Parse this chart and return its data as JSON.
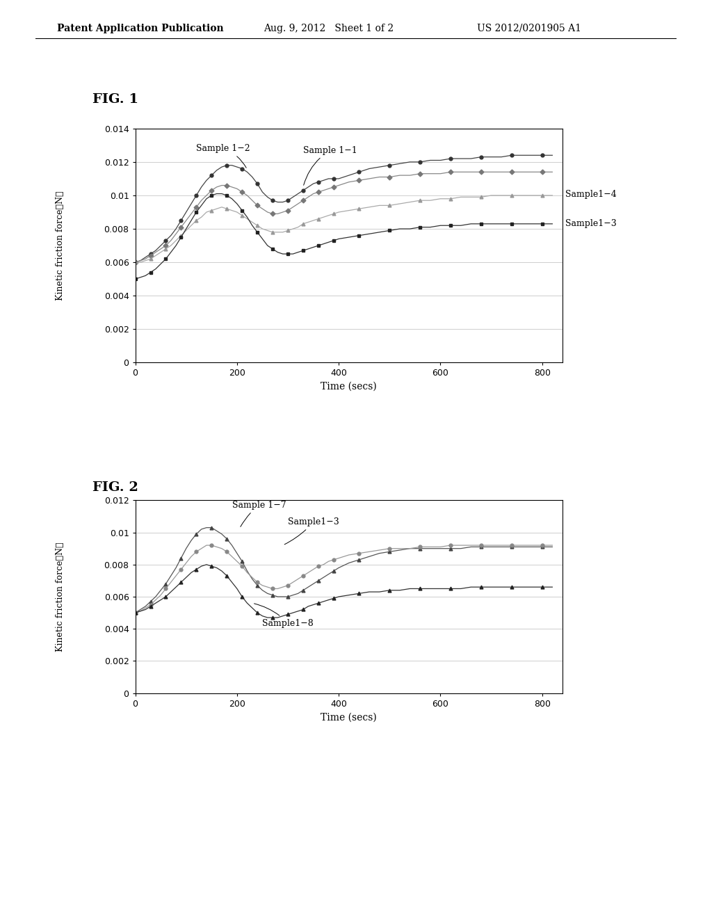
{
  "header_left": "Patent Application Publication",
  "header_mid": "Aug. 9, 2012   Sheet 1 of 2",
  "header_right": "US 2012/0201905 A1",
  "fig1_title": "FIG. 1",
  "fig2_title": "FIG. 2",
  "xlabel": "Time (secs)",
  "fig1": {
    "ylabel": "Kinetic friction force（N）",
    "ylim": [
      0,
      0.014
    ],
    "xlim": [
      0,
      840
    ],
    "yticks": [
      0,
      0.002,
      0.004,
      0.006,
      0.008,
      0.01,
      0.012,
      0.014
    ],
    "xticks": [
      0,
      200,
      400,
      600,
      800
    ],
    "series": [
      {
        "label": "Sample 1−2",
        "color": "#444444",
        "marker": "o",
        "marker_color": "#333333",
        "x": [
          0,
          10,
          20,
          30,
          40,
          50,
          60,
          70,
          80,
          90,
          100,
          110,
          120,
          130,
          140,
          150,
          160,
          170,
          180,
          190,
          200,
          210,
          220,
          230,
          240,
          250,
          260,
          270,
          280,
          290,
          300,
          310,
          320,
          330,
          340,
          350,
          360,
          370,
          380,
          390,
          400,
          420,
          440,
          460,
          480,
          500,
          520,
          540,
          560,
          580,
          600,
          620,
          640,
          660,
          680,
          700,
          720,
          740,
          760,
          780,
          800,
          820
        ],
        "y": [
          0.006,
          0.0061,
          0.0063,
          0.0065,
          0.0067,
          0.007,
          0.0073,
          0.0076,
          0.008,
          0.0085,
          0.009,
          0.0095,
          0.01,
          0.0105,
          0.0109,
          0.0112,
          0.0115,
          0.0117,
          0.0118,
          0.0118,
          0.0117,
          0.0116,
          0.0114,
          0.0111,
          0.0107,
          0.0102,
          0.0099,
          0.0097,
          0.0096,
          0.0096,
          0.0097,
          0.0099,
          0.0101,
          0.0103,
          0.0105,
          0.0107,
          0.0108,
          0.0109,
          0.011,
          0.011,
          0.011,
          0.0112,
          0.0114,
          0.0116,
          0.0117,
          0.0118,
          0.0119,
          0.012,
          0.012,
          0.0121,
          0.0121,
          0.0122,
          0.0122,
          0.0122,
          0.0123,
          0.0123,
          0.0123,
          0.0124,
          0.0124,
          0.0124,
          0.0124,
          0.0124
        ]
      },
      {
        "label": "Sample 1−1",
        "color": "#888888",
        "marker": "D",
        "marker_color": "#777777",
        "x": [
          0,
          10,
          20,
          30,
          40,
          50,
          60,
          70,
          80,
          90,
          100,
          110,
          120,
          130,
          140,
          150,
          160,
          170,
          180,
          190,
          200,
          210,
          220,
          230,
          240,
          250,
          260,
          270,
          280,
          290,
          300,
          310,
          320,
          330,
          340,
          350,
          360,
          370,
          380,
          390,
          400,
          420,
          440,
          460,
          480,
          500,
          520,
          540,
          560,
          580,
          600,
          620,
          640,
          660,
          680,
          700,
          720,
          740,
          760,
          780,
          800,
          820
        ],
        "y": [
          0.006,
          0.0061,
          0.0062,
          0.0064,
          0.0066,
          0.0068,
          0.007,
          0.0073,
          0.0077,
          0.0081,
          0.0085,
          0.0089,
          0.0093,
          0.0097,
          0.01,
          0.0103,
          0.0105,
          0.0106,
          0.0106,
          0.0105,
          0.0104,
          0.0102,
          0.01,
          0.0097,
          0.0094,
          0.0092,
          0.009,
          0.0089,
          0.0089,
          0.009,
          0.0091,
          0.0093,
          0.0095,
          0.0097,
          0.0099,
          0.0101,
          0.0102,
          0.0103,
          0.0104,
          0.0105,
          0.0106,
          0.0108,
          0.0109,
          0.011,
          0.0111,
          0.0111,
          0.0112,
          0.0112,
          0.0113,
          0.0113,
          0.0113,
          0.0114,
          0.0114,
          0.0114,
          0.0114,
          0.0114,
          0.0114,
          0.0114,
          0.0114,
          0.0114,
          0.0114,
          0.0114
        ]
      },
      {
        "label": "Sample1−4",
        "color": "#aaaaaa",
        "marker": "^",
        "marker_color": "#999999",
        "x": [
          0,
          10,
          20,
          30,
          40,
          50,
          60,
          70,
          80,
          90,
          100,
          110,
          120,
          130,
          140,
          150,
          160,
          170,
          180,
          190,
          200,
          210,
          220,
          230,
          240,
          250,
          260,
          270,
          280,
          290,
          300,
          310,
          320,
          330,
          340,
          350,
          360,
          370,
          380,
          390,
          400,
          420,
          440,
          460,
          480,
          500,
          520,
          540,
          560,
          580,
          600,
          620,
          640,
          660,
          680,
          700,
          720,
          740,
          760,
          780,
          800,
          820
        ],
        "y": [
          0.006,
          0.006,
          0.0061,
          0.0062,
          0.0064,
          0.0066,
          0.0068,
          0.007,
          0.0073,
          0.0076,
          0.0079,
          0.0082,
          0.0085,
          0.0087,
          0.009,
          0.0091,
          0.0092,
          0.0093,
          0.0092,
          0.0091,
          0.009,
          0.0088,
          0.0086,
          0.0084,
          0.0082,
          0.008,
          0.0079,
          0.0078,
          0.0078,
          0.0078,
          0.0079,
          0.008,
          0.0081,
          0.0083,
          0.0084,
          0.0085,
          0.0086,
          0.0087,
          0.0088,
          0.0089,
          0.009,
          0.0091,
          0.0092,
          0.0093,
          0.0094,
          0.0094,
          0.0095,
          0.0096,
          0.0097,
          0.0097,
          0.0098,
          0.0098,
          0.0099,
          0.0099,
          0.0099,
          0.01,
          0.01,
          0.01,
          0.01,
          0.01,
          0.01,
          0.01
        ]
      },
      {
        "label": "Sample1−3",
        "color": "#333333",
        "marker": "s",
        "marker_color": "#222222",
        "x": [
          0,
          10,
          20,
          30,
          40,
          50,
          60,
          70,
          80,
          90,
          100,
          110,
          120,
          130,
          140,
          150,
          160,
          170,
          180,
          190,
          200,
          210,
          220,
          230,
          240,
          250,
          260,
          270,
          280,
          290,
          300,
          310,
          320,
          330,
          340,
          350,
          360,
          370,
          380,
          390,
          400,
          420,
          440,
          460,
          480,
          500,
          520,
          540,
          560,
          580,
          600,
          620,
          640,
          660,
          680,
          700,
          720,
          740,
          760,
          780,
          800,
          820
        ],
        "y": [
          0.005,
          0.0051,
          0.0052,
          0.0054,
          0.0056,
          0.0059,
          0.0062,
          0.0066,
          0.007,
          0.0075,
          0.008,
          0.0085,
          0.009,
          0.0094,
          0.0098,
          0.01,
          0.0101,
          0.0101,
          0.01,
          0.0098,
          0.0095,
          0.0091,
          0.0087,
          0.0082,
          0.0078,
          0.0074,
          0.007,
          0.0068,
          0.0066,
          0.0065,
          0.0065,
          0.0065,
          0.0066,
          0.0067,
          0.0068,
          0.0069,
          0.007,
          0.0071,
          0.0072,
          0.0073,
          0.0074,
          0.0075,
          0.0076,
          0.0077,
          0.0078,
          0.0079,
          0.008,
          0.008,
          0.0081,
          0.0081,
          0.0082,
          0.0082,
          0.0082,
          0.0083,
          0.0083,
          0.0083,
          0.0083,
          0.0083,
          0.0083,
          0.0083,
          0.0083,
          0.0083
        ]
      }
    ],
    "label1_2_text": "Sample 1−2",
    "label1_1_text": "Sample 1−1",
    "label1_4_text": "Sample1−4",
    "label1_3_text": "Sample1−3"
  },
  "fig2": {
    "ylabel": "Kinetic friction force（N）",
    "ylim": [
      0,
      0.012
    ],
    "xlim": [
      0,
      840
    ],
    "yticks": [
      0,
      0.002,
      0.004,
      0.006,
      0.008,
      0.01,
      0.012
    ],
    "xticks": [
      0,
      200,
      400,
      600,
      800
    ],
    "series": [
      {
        "label": "Sample 1−7",
        "color": "#555555",
        "marker": "^",
        "marker_color": "#444444",
        "x": [
          0,
          10,
          20,
          30,
          40,
          50,
          60,
          70,
          80,
          90,
          100,
          110,
          120,
          130,
          140,
          150,
          160,
          170,
          180,
          190,
          200,
          210,
          220,
          230,
          240,
          250,
          260,
          270,
          280,
          290,
          300,
          310,
          320,
          330,
          340,
          350,
          360,
          370,
          380,
          390,
          400,
          420,
          440,
          460,
          480,
          500,
          520,
          540,
          560,
          580,
          600,
          620,
          640,
          660,
          680,
          700,
          720,
          740,
          760,
          780,
          800,
          820
        ],
        "y": [
          0.005,
          0.0052,
          0.0054,
          0.0057,
          0.006,
          0.0064,
          0.0068,
          0.0073,
          0.0078,
          0.0084,
          0.009,
          0.0095,
          0.0099,
          0.0102,
          0.0103,
          0.0103,
          0.0101,
          0.0099,
          0.0096,
          0.0092,
          0.0087,
          0.0082,
          0.0076,
          0.0071,
          0.0067,
          0.0064,
          0.0062,
          0.0061,
          0.006,
          0.006,
          0.006,
          0.0061,
          0.0062,
          0.0064,
          0.0066,
          0.0068,
          0.007,
          0.0072,
          0.0074,
          0.0076,
          0.0078,
          0.0081,
          0.0083,
          0.0085,
          0.0087,
          0.0088,
          0.0089,
          0.009,
          0.009,
          0.009,
          0.009,
          0.009,
          0.009,
          0.0091,
          0.0091,
          0.0091,
          0.0091,
          0.0091,
          0.0091,
          0.0091,
          0.0091,
          0.0091
        ]
      },
      {
        "label": "Sample1−3",
        "color": "#999999",
        "marker": "o",
        "marker_color": "#888888",
        "x": [
          0,
          10,
          20,
          30,
          40,
          50,
          60,
          70,
          80,
          90,
          100,
          110,
          120,
          130,
          140,
          150,
          160,
          170,
          180,
          190,
          200,
          210,
          220,
          230,
          240,
          250,
          260,
          270,
          280,
          290,
          300,
          310,
          320,
          330,
          340,
          350,
          360,
          370,
          380,
          390,
          400,
          420,
          440,
          460,
          480,
          500,
          520,
          540,
          560,
          580,
          600,
          620,
          640,
          660,
          680,
          700,
          720,
          740,
          760,
          780,
          800,
          820
        ],
        "y": [
          0.005,
          0.0051,
          0.0053,
          0.0055,
          0.0058,
          0.0061,
          0.0065,
          0.0069,
          0.0073,
          0.0077,
          0.0081,
          0.0085,
          0.0088,
          0.009,
          0.0092,
          0.0092,
          0.0091,
          0.009,
          0.0088,
          0.0085,
          0.0082,
          0.0079,
          0.0075,
          0.0072,
          0.0069,
          0.0067,
          0.0066,
          0.0065,
          0.0065,
          0.0066,
          0.0067,
          0.0069,
          0.0071,
          0.0073,
          0.0075,
          0.0077,
          0.0079,
          0.008,
          0.0082,
          0.0083,
          0.0084,
          0.0086,
          0.0087,
          0.0088,
          0.0089,
          0.009,
          0.009,
          0.009,
          0.0091,
          0.0091,
          0.0091,
          0.0092,
          0.0092,
          0.0092,
          0.0092,
          0.0092,
          0.0092,
          0.0092,
          0.0092,
          0.0092,
          0.0092,
          0.0092
        ]
      },
      {
        "label": "Sample1−8",
        "color": "#333333",
        "marker": "^",
        "marker_color": "#222222",
        "x": [
          0,
          10,
          20,
          30,
          40,
          50,
          60,
          70,
          80,
          90,
          100,
          110,
          120,
          130,
          140,
          150,
          160,
          170,
          180,
          190,
          200,
          210,
          220,
          230,
          240,
          250,
          260,
          270,
          280,
          290,
          300,
          310,
          320,
          330,
          340,
          350,
          360,
          370,
          380,
          390,
          400,
          420,
          440,
          460,
          480,
          500,
          520,
          540,
          560,
          580,
          600,
          620,
          640,
          660,
          680,
          700,
          720,
          740,
          760,
          780,
          800,
          820
        ],
        "y": [
          0.005,
          0.0051,
          0.0052,
          0.0054,
          0.0056,
          0.0058,
          0.006,
          0.0063,
          0.0066,
          0.0069,
          0.0072,
          0.0075,
          0.0077,
          0.0079,
          0.008,
          0.0079,
          0.0078,
          0.0076,
          0.0073,
          0.0069,
          0.0065,
          0.006,
          0.0056,
          0.0053,
          0.005,
          0.0048,
          0.0047,
          0.0047,
          0.0047,
          0.0048,
          0.0049,
          0.005,
          0.0051,
          0.0052,
          0.0054,
          0.0055,
          0.0056,
          0.0057,
          0.0058,
          0.0059,
          0.006,
          0.0061,
          0.0062,
          0.0063,
          0.0063,
          0.0064,
          0.0064,
          0.0065,
          0.0065,
          0.0065,
          0.0065,
          0.0065,
          0.0065,
          0.0066,
          0.0066,
          0.0066,
          0.0066,
          0.0066,
          0.0066,
          0.0066,
          0.0066,
          0.0066
        ]
      }
    ],
    "label1_7_text": "Sample 1−7",
    "label1_3_text": "Sample1−3",
    "label1_8_text": "Sample1−8"
  }
}
